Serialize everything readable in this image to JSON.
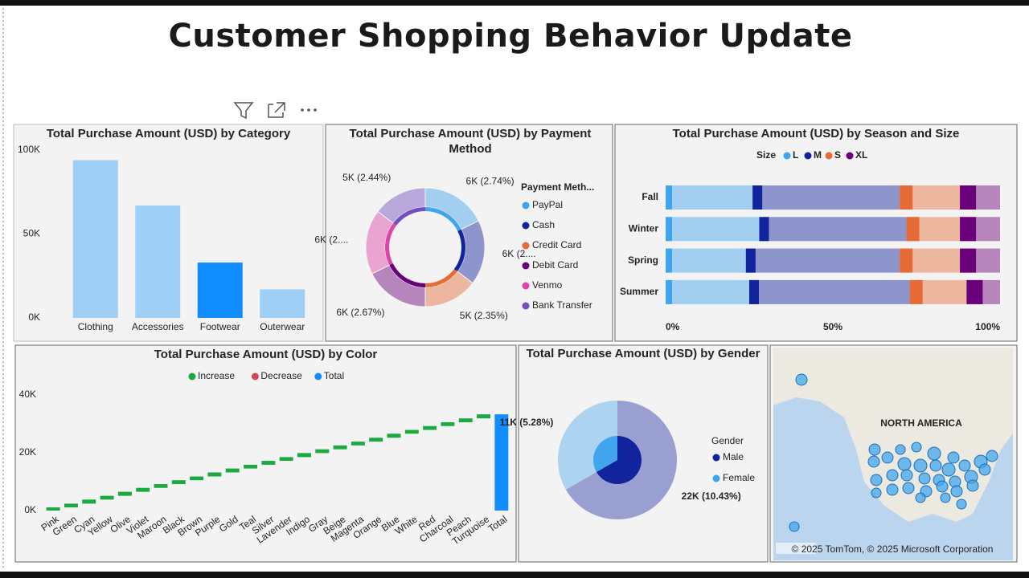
{
  "title": "Customer Shopping Behavior Update",
  "chart_data": [
    {
      "type": "bar",
      "title": "Total Purchase Amount (USD) by Category",
      "categories": [
        "Clothing",
        "Accessories",
        "Footwear",
        "Outerwear"
      ],
      "values": [
        94000,
        67000,
        33000,
        17000
      ],
      "colors": [
        "#a0cff5",
        "#a0cff5",
        "#118dff",
        "#a0cff5"
      ],
      "ylim": [
        0,
        100000
      ],
      "yticks": [
        {
          "value": 0,
          "label": "0K"
        },
        {
          "value": 50000,
          "label": "50K"
        },
        {
          "value": 100000,
          "label": "100K"
        }
      ]
    },
    {
      "type": "donut",
      "title": "Total Purchase Amount (USD) by Payment Method",
      "legend_title": "Payment Meth...",
      "categories": [
        "PayPal",
        "Cash",
        "Credit Card",
        "Debit Card",
        "Venmo",
        "Bank Transfer"
      ],
      "values": [
        6000,
        6000,
        5000,
        6000,
        6000,
        5000
      ],
      "value_labels": [
        "6K (2.74%)",
        "6K (2....",
        "5K (2.35%)",
        "6K (2.67%)",
        "6K (2....",
        "5K (2.44%)"
      ],
      "colors": [
        "#41a5ee",
        "#12239e",
        "#e66c37",
        "#6b007b",
        "#e044a7",
        "#744ec2"
      ]
    },
    {
      "type": "stacked_bar_100h",
      "title": "Total Purchase Amount (USD) by Season and Size",
      "legend_title": "Size",
      "categories": [
        "Fall",
        "Winter",
        "Spring",
        "Summer"
      ],
      "series": [
        {
          "name": "L",
          "color": "#41a5ee",
          "values": [
            26,
            28,
            24,
            25
          ]
        },
        {
          "name": "M",
          "color": "#12239e",
          "values": [
            44,
            44,
            46,
            48
          ]
        },
        {
          "name": "S",
          "color": "#e66c37",
          "values": [
            18,
            16,
            18,
            17
          ]
        },
        {
          "name": "XL",
          "color": "#6b007b",
          "values": [
            12,
            12,
            12,
            10
          ]
        }
      ],
      "xlim": [
        0,
        100
      ],
      "xticks": [
        {
          "value": 0,
          "label": "0%"
        },
        {
          "value": 50,
          "label": "50%"
        },
        {
          "value": 100,
          "label": "100%"
        }
      ]
    },
    {
      "type": "waterfall",
      "title": "Total Purchase Amount (USD) by Color",
      "legend": [
        {
          "name": "Increase",
          "color": "#1aab40"
        },
        {
          "name": "Decrease",
          "color": "#d64554"
        },
        {
          "name": "Total",
          "color": "#118dff"
        }
      ],
      "categories": [
        "Pink",
        "Green",
        "Cyan",
        "Yellow",
        "Olive",
        "Violet",
        "Maroon",
        "Black",
        "Brown",
        "Purple",
        "Gold",
        "Teal",
        "Silver",
        "Lavender",
        "Indigo",
        "Gray",
        "Beige",
        "Magenta",
        "Orange",
        "Blue",
        "White",
        "Red",
        "Charcoal",
        "Peach",
        "Turquoise",
        "Total"
      ],
      "values": [
        1100,
        1300,
        1400,
        1300,
        1400,
        1350,
        1300,
        1350,
        1300,
        1400,
        1350,
        1300,
        1350,
        1300,
        1400,
        1300,
        1350,
        1300,
        1350,
        1400,
        1300,
        1350,
        1300,
        1350,
        1400,
        33300
      ],
      "ylim": [
        0,
        40000
      ],
      "yticks": [
        {
          "value": 0,
          "label": "0K"
        },
        {
          "value": 20000,
          "label": "20K"
        },
        {
          "value": 40000,
          "label": "40K"
        }
      ]
    },
    {
      "type": "pie",
      "title": "Total Purchase Amount (USD) by Gender",
      "legend_title": "Gender",
      "categories": [
        "Male",
        "Female"
      ],
      "values": [
        22000,
        11000
      ],
      "value_labels": [
        "22K (10.43%)",
        "11K (5.28%)"
      ],
      "colors": [
        "#12239e",
        "#41a5ee"
      ]
    }
  ],
  "map": {
    "label": "NORTH AMERICA",
    "attribution": "© 2025 TomTom, © 2025 Microsoft Corporation"
  }
}
